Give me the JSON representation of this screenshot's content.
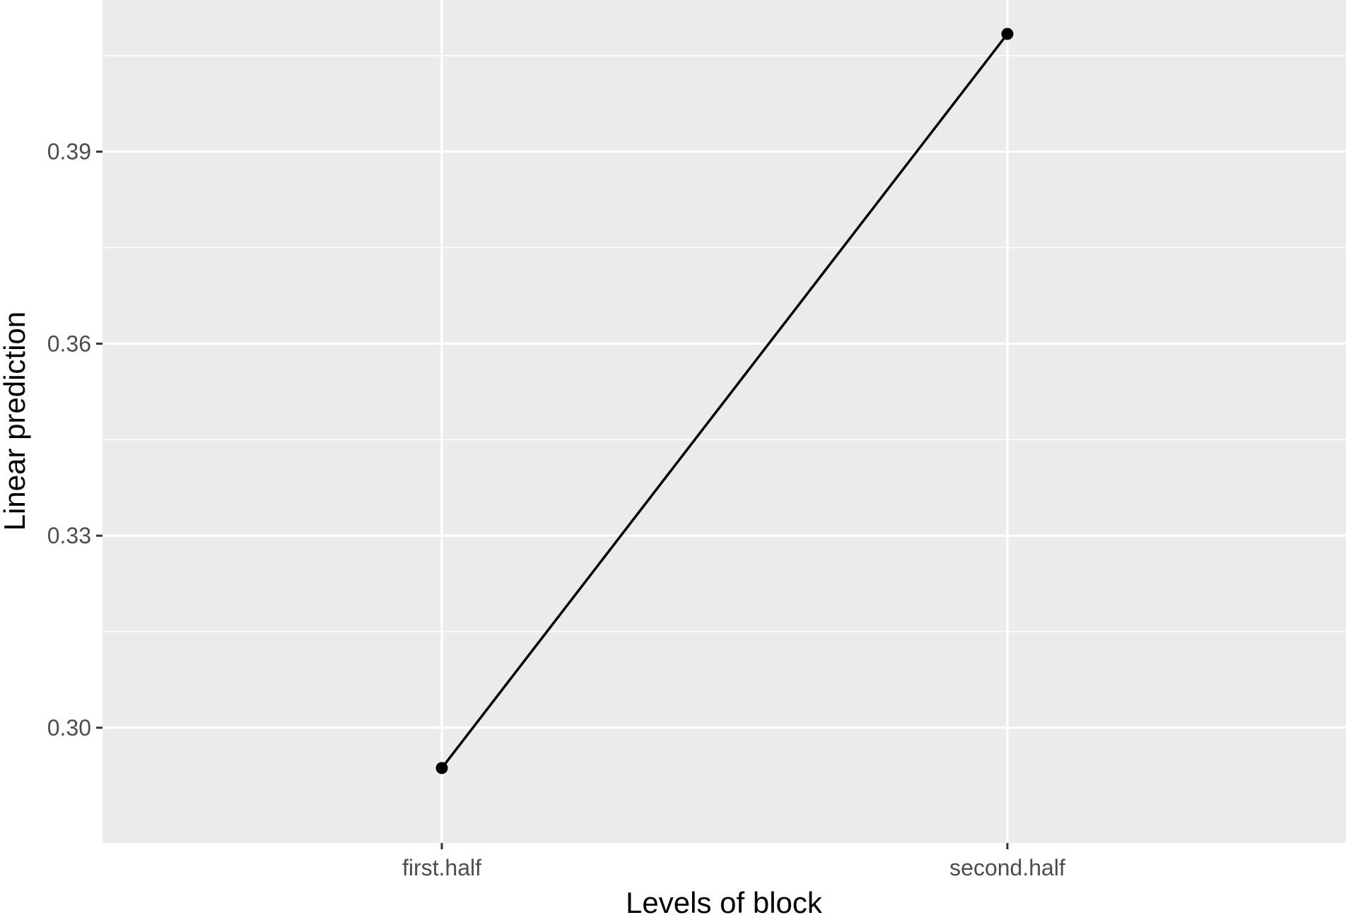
{
  "chart_data": {
    "type": "line",
    "title": "",
    "xlabel": "Levels of block",
    "ylabel": "Linear prediction",
    "categories": [
      "first.half",
      "second.half"
    ],
    "series": [
      {
        "values": [
          0.2937,
          0.4084
        ]
      }
    ],
    "ylim": [
      0.282,
      0.4137
    ],
    "yticks": [
      0.3,
      0.33,
      0.36,
      0.39
    ],
    "ytick_labels": [
      "0.30",
      "0.33",
      "0.36",
      "0.39"
    ],
    "grid": true,
    "panel_color": "#ebebeb",
    "grid_color": "#ffffff",
    "line_color": "#000000"
  }
}
